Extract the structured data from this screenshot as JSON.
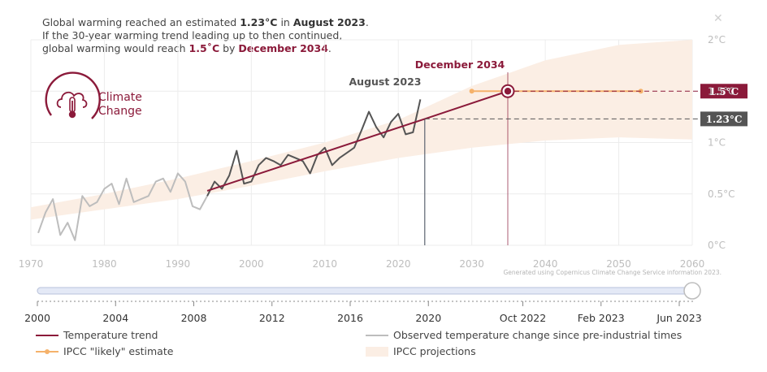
{
  "headline": {
    "line1_pre": "Global warming reached an estimated ",
    "line1_value": "1.23°C",
    "line1_mid": " in ",
    "line1_date": "August 2023",
    "line1_end": ".",
    "line2": "If the 30-year warming trend leading up to then continued,",
    "line3_pre": "global warming would reach ",
    "line3_value": "1.5˚C",
    "line3_mid": " by ",
    "line3_date": "December 2034",
    "line3_end": "."
  },
  "logo": {
    "line1": "Climate",
    "line2": "Change",
    "icon": "cloud-thermometer-icon"
  },
  "close_icon": "close-icon",
  "colors": {
    "accent": "#8b1a3a",
    "observed_recent": "#555555",
    "observed_early": "#bdbdbd",
    "ipcc_likely": "#f5b26b",
    "ipcc_band": "#fbeee4",
    "marker_line": "#5d6470"
  },
  "chart_data": {
    "type": "line",
    "title": "Global warming reached an estimated 1.23°C in August 2023",
    "xlim": [
      1970,
      2060
    ],
    "ylim": [
      0,
      2
    ],
    "x_ticks": [
      1970,
      1980,
      1990,
      2000,
      2010,
      2020,
      2030,
      2040,
      2050,
      2060
    ],
    "y_ticks": [
      {
        "value": 0,
        "label": "0°C"
      },
      {
        "value": 0.5,
        "label": "0.5°C"
      },
      {
        "value": 1,
        "label": "1°C"
      },
      {
        "value": 1.5,
        "label": "1.5°C"
      },
      {
        "value": 2,
        "label": "2°C"
      }
    ],
    "series": [
      {
        "name": "Observed temperature change since pre-industrial times",
        "x": [
          1971,
          1972,
          1973,
          1974,
          1975,
          1976,
          1977,
          1978,
          1979,
          1980,
          1981,
          1982,
          1983,
          1984,
          1985,
          1986,
          1987,
          1988,
          1989,
          1990,
          1991,
          1992,
          1993,
          1994,
          1995,
          1996,
          1997,
          1998,
          1999,
          2000,
          2001,
          2002,
          2003,
          2004,
          2005,
          2006,
          2007,
          2008,
          2009,
          2010,
          2011,
          2012,
          2013,
          2014,
          2015,
          2016,
          2017,
          2018,
          2019,
          2020,
          2021,
          2022,
          2023
        ],
        "y": [
          0.12,
          0.32,
          0.45,
          0.1,
          0.22,
          0.05,
          0.48,
          0.38,
          0.42,
          0.55,
          0.6,
          0.4,
          0.65,
          0.42,
          0.45,
          0.48,
          0.62,
          0.65,
          0.52,
          0.7,
          0.62,
          0.38,
          0.35,
          0.48,
          0.62,
          0.55,
          0.68,
          0.92,
          0.6,
          0.62,
          0.78,
          0.85,
          0.82,
          0.78,
          0.88,
          0.85,
          0.82,
          0.7,
          0.88,
          0.95,
          0.78,
          0.85,
          0.9,
          0.95,
          1.12,
          1.3,
          1.15,
          1.05,
          1.2,
          1.28,
          1.08,
          1.1,
          1.42
        ]
      },
      {
        "name": "Temperature trend",
        "x": [
          1994,
          2023.6,
          2034.9
        ],
        "y": [
          0.53,
          1.23,
          1.5
        ]
      },
      {
        "name": "IPCC \"likely\" estimate",
        "x": [
          2030,
          2053
        ],
        "y": [
          1.5,
          1.5
        ],
        "marker_year": 2034.9
      }
    ],
    "band": {
      "name": "IPCC projections",
      "x": [
        1970,
        1980,
        1990,
        2000,
        2010,
        2020,
        2030,
        2040,
        2050,
        2060
      ],
      "lower": [
        0.25,
        0.35,
        0.45,
        0.58,
        0.72,
        0.85,
        0.95,
        1.02,
        1.05,
        1.03
      ],
      "upper": [
        0.37,
        0.5,
        0.65,
        0.82,
        1.0,
        1.22,
        1.55,
        1.8,
        1.95,
        2.0
      ]
    },
    "annotations": [
      {
        "label": "August 2023",
        "x": 2023.6
      },
      {
        "label": "December 2034",
        "x": 2034.9
      }
    ],
    "value_tags": [
      {
        "label": "1.5°C",
        "y": 1.5
      },
      {
        "label": "1.23°C",
        "y": 1.23
      }
    ],
    "credit": "Generated using Copernicus Climate Change Service information 2023."
  },
  "slider": {
    "ticks": [
      "2000",
      "2004",
      "2008",
      "2012",
      "2016",
      "2020",
      "Oct 2022",
      "Feb 2023",
      "Jun 2023"
    ]
  },
  "legend": [
    {
      "label": "Temperature trend",
      "kind": "trend"
    },
    {
      "label": "Observed temperature change since pre-industrial times",
      "kind": "observed"
    },
    {
      "label": "IPCC \"likely\" estimate",
      "kind": "likely"
    },
    {
      "label": "IPCC projections",
      "kind": "band"
    }
  ]
}
